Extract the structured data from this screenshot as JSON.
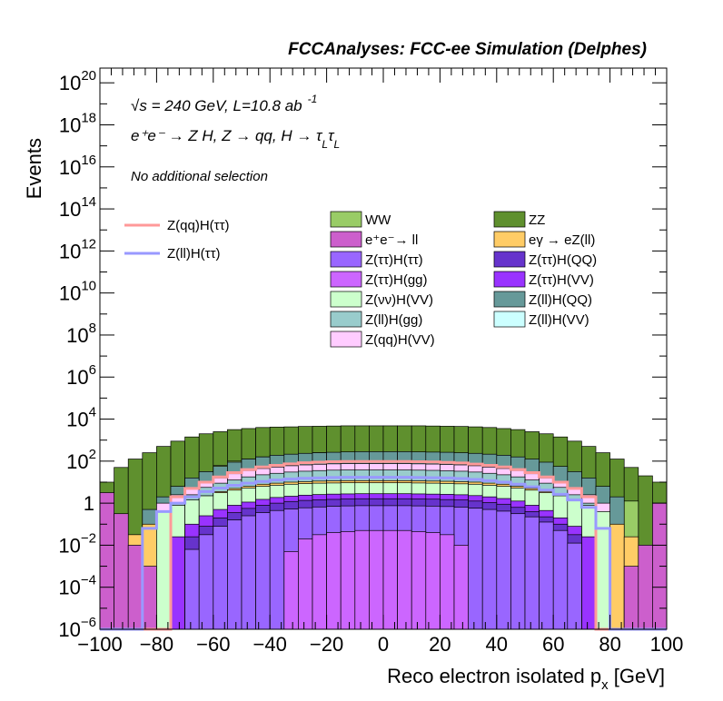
{
  "chart_data": {
    "type": "area",
    "title": "FCCAnalyses: FCC-ee Simulation (Delphes)",
    "xlabel": "Reco electron isolated p",
    "xlabel_sub": "x",
    "xlabel_unit": " [GeV]",
    "ylabel": "Events",
    "xlim": [
      -100,
      100
    ],
    "ylim_log10": [
      -6,
      20.7
    ],
    "log_y": true,
    "grid": false,
    "x_ticks": [
      "−100",
      "−80",
      "−60",
      "−40",
      "−20",
      "0",
      "20",
      "40",
      "60",
      "80",
      "100"
    ],
    "y_ticks": [
      {
        "base": "10",
        "exp": "−6"
      },
      {
        "base": "10",
        "exp": "−4"
      },
      {
        "base": "10",
        "exp": "−2"
      },
      {
        "base": "1",
        "exp": ""
      },
      {
        "base": "10",
        "exp": "2"
      },
      {
        "base": "10",
        "exp": "4"
      },
      {
        "base": "10",
        "exp": "6"
      },
      {
        "base": "10",
        "exp": "8"
      },
      {
        "base": "10",
        "exp": "10"
      },
      {
        "base": "10",
        "exp": "12"
      },
      {
        "base": "10",
        "exp": "14"
      },
      {
        "base": "10",
        "exp": "16"
      },
      {
        "base": "10",
        "exp": "18"
      },
      {
        "base": "10",
        "exp": "20"
      }
    ],
    "annotations": {
      "energy_prefix": "√",
      "energy_s": "s",
      "energy_text": " = 240 GeV, L=10.8 ab",
      "lumi_exp": "-1",
      "process": "e⁺e⁻ → Z H, Z → qq, H → τ",
      "tau_sub": "L",
      "tau2": "τ",
      "tau2_sub": "L",
      "selection": "No additional selection"
    },
    "legend_placement": "center-right",
    "signals": [
      {
        "name": "Z(qq)H(ττ)",
        "color": "#ff9999"
      },
      {
        "name": "Z(ll)H(ττ)",
        "color": "#9999ff"
      }
    ],
    "legend_backgrounds": [
      {
        "name": "WW",
        "color": "#99cc66"
      },
      {
        "name": "ZZ",
        "color": "#5f902e"
      },
      {
        "name": "e⁺e⁻→ ll",
        "color": "#cc5fcc"
      },
      {
        "name": "eγ → eZ(ll)",
        "color": "#ffcc66"
      },
      {
        "name": "Z(ττ)H(ττ)",
        "color": "#9966ff"
      },
      {
        "name": "Z(ττ)H(QQ)",
        "color": "#6633cc"
      },
      {
        "name": "Z(ττ)H(gg)",
        "color": "#cc66ff"
      },
      {
        "name": "Z(ττ)H(VV)",
        "color": "#9933ff"
      },
      {
        "name": "Z(νν)H(VV)",
        "color": "#ccffcc"
      },
      {
        "name": "Z(ll)H(QQ)",
        "color": "#669999"
      },
      {
        "name": "Z(ll)H(gg)",
        "color": "#99cccc"
      },
      {
        "name": "Z(ll)H(VV)",
        "color": "#ccffff"
      },
      {
        "name": "Z(qq)H(VV)",
        "color": "#ffccff"
      }
    ],
    "bin_edges_start": -100,
    "bin_width": 5,
    "stack_log10": [
      {
        "name": "ZZ",
        "color": "#5f902e",
        "values": [
          1.0,
          1.7,
          2.1,
          2.4,
          2.7,
          2.95,
          3.15,
          3.3,
          3.4,
          3.5,
          3.55,
          3.6,
          3.62,
          3.63,
          3.65,
          3.66,
          3.67,
          3.68,
          3.68,
          3.68,
          3.68,
          3.68,
          3.68,
          3.67,
          3.66,
          3.65,
          3.63,
          3.6,
          3.55,
          3.5,
          3.4,
          3.3,
          3.15,
          2.95,
          2.7,
          2.4,
          2.1,
          1.7,
          1.3,
          1.0
        ]
      },
      {
        "name": "WW",
        "color": "#99cc66",
        "values": [
          -6,
          -6,
          -6,
          -2.5,
          -0.5,
          0.5,
          1.0,
          1.5,
          1.8,
          2.0,
          2.1,
          2.2,
          2.25,
          2.3,
          2.35,
          2.4,
          2.4,
          2.4,
          2.4,
          2.4,
          2.4,
          2.4,
          2.4,
          2.4,
          2.4,
          2.35,
          2.3,
          2.25,
          2.2,
          2.1,
          2.0,
          1.8,
          1.5,
          1.0,
          0.4,
          0.2,
          -0.3,
          0.1,
          -6,
          -6
        ]
      },
      {
        "name": "Z(ll)H(QQ)",
        "color": "#669999",
        "values": [
          -6,
          -6,
          -6,
          -0.3,
          0.3,
          0.8,
          1.2,
          1.5,
          1.75,
          1.95,
          2.1,
          2.2,
          2.28,
          2.33,
          2.37,
          2.4,
          2.42,
          2.44,
          2.45,
          2.45,
          2.45,
          2.45,
          2.44,
          2.43,
          2.42,
          2.4,
          2.37,
          2.33,
          2.28,
          2.2,
          2.1,
          1.95,
          1.75,
          1.5,
          1.2,
          0.8,
          0.3,
          -6,
          -6,
          -6
        ]
      },
      {
        "name": "Z(qq)H(VV)",
        "color": "#ffccff",
        "values": [
          -6,
          -6,
          -6,
          -6,
          0.0,
          0.4,
          0.7,
          1.0,
          1.2,
          1.4,
          1.55,
          1.65,
          1.72,
          1.78,
          1.82,
          1.85,
          1.87,
          1.88,
          1.88,
          1.88,
          1.88,
          1.88,
          1.87,
          1.86,
          1.84,
          1.82,
          1.78,
          1.72,
          1.65,
          1.55,
          1.4,
          1.2,
          1.0,
          0.7,
          0.4,
          0.0,
          -6,
          -6,
          -6,
          -6
        ]
      },
      {
        "name": "Z(ll)H(gg)",
        "color": "#99cccc",
        "values": [
          -6,
          -6,
          -6,
          -6,
          -6,
          0.0,
          0.4,
          0.75,
          0.95,
          1.1,
          1.25,
          1.35,
          1.42,
          1.48,
          1.52,
          1.55,
          1.57,
          1.58,
          1.58,
          1.58,
          1.58,
          1.58,
          1.57,
          1.56,
          1.54,
          1.52,
          1.48,
          1.42,
          1.35,
          1.25,
          1.1,
          0.95,
          0.75,
          0.4,
          0.0,
          -6,
          -6,
          -6,
          -6,
          -6
        ]
      },
      {
        "name": "eγ → eZ(ll)",
        "color": "#ffcc66",
        "values": [
          -6,
          -6,
          -1.5,
          -1.0,
          -0.5,
          -0.2,
          0.1,
          0.35,
          0.55,
          0.7,
          0.8,
          0.9,
          0.95,
          1.0,
          1.02,
          1.05,
          1.06,
          1.07,
          1.07,
          1.07,
          1.07,
          1.07,
          1.06,
          1.05,
          1.04,
          1.02,
          1.0,
          0.95,
          0.9,
          0.8,
          0.7,
          0.55,
          0.35,
          0.1,
          -0.2,
          -0.5,
          -1.0,
          -1.6,
          -6,
          -6
        ]
      },
      {
        "name": "Z(νν)H(VV)",
        "color": "#ccffcc",
        "values": [
          -6,
          -6,
          -6,
          -6,
          -0.4,
          -0.1,
          0.15,
          0.35,
          0.5,
          0.62,
          0.72,
          0.8,
          0.85,
          0.9,
          0.93,
          0.95,
          0.96,
          0.97,
          0.97,
          0.97,
          0.97,
          0.97,
          0.96,
          0.95,
          0.94,
          0.92,
          0.9,
          0.85,
          0.8,
          0.72,
          0.62,
          0.5,
          0.35,
          0.15,
          -0.1,
          -0.4,
          -6,
          -6,
          -6,
          -6
        ]
      },
      {
        "name": "Z(ττ)H(VV)",
        "color": "#9933ff",
        "values": [
          -6,
          -6,
          -6,
          -6,
          -6,
          -1.6,
          -1.0,
          -0.6,
          -0.3,
          -0.1,
          0.05,
          0.18,
          0.27,
          0.33,
          0.38,
          0.41,
          0.43,
          0.44,
          0.45,
          0.45,
          0.45,
          0.45,
          0.44,
          0.43,
          0.42,
          0.4,
          0.36,
          0.3,
          0.22,
          0.1,
          -0.1,
          -0.35,
          -0.7,
          -1.1,
          -1.6,
          -6,
          -6,
          -6,
          -6,
          -6
        ]
      },
      {
        "name": "Z(ττ)H(QQ)",
        "color": "#6633cc",
        "values": [
          -6,
          -6,
          -6,
          -6,
          -6,
          -6,
          -1.6,
          -1.1,
          -0.7,
          -0.45,
          -0.25,
          -0.1,
          0.0,
          0.08,
          0.13,
          0.16,
          0.18,
          0.2,
          0.21,
          0.21,
          0.21,
          0.21,
          0.2,
          0.19,
          0.17,
          0.15,
          0.1,
          0.03,
          -0.05,
          -0.2,
          -0.4,
          -0.65,
          -1.0,
          -1.5,
          -6,
          -6,
          -6,
          -6,
          -6,
          -6
        ]
      },
      {
        "name": "Z(ττ)H(ττ)",
        "color": "#9966ff",
        "values": [
          -6,
          -6,
          -6,
          -6,
          -6,
          -6,
          -2.2,
          -1.5,
          -1.1,
          -0.8,
          -0.6,
          -0.45,
          -0.35,
          -0.28,
          -0.22,
          -0.18,
          -0.15,
          -0.13,
          -0.12,
          -0.12,
          -0.12,
          -0.12,
          -0.13,
          -0.14,
          -0.16,
          -0.19,
          -0.24,
          -0.3,
          -0.38,
          -0.5,
          -0.65,
          -0.9,
          -1.3,
          -1.9,
          -6,
          -6,
          -6,
          -6,
          -6,
          -6
        ]
      },
      {
        "name": "Z(ττ)H(gg)",
        "color": "#cc66ff",
        "values": [
          -6,
          -6,
          -6,
          -6,
          -6,
          -6,
          -6,
          -6,
          -6,
          -6,
          -6,
          -6,
          -6,
          -2.3,
          -1.7,
          -1.5,
          -1.4,
          -1.35,
          -1.3,
          -1.3,
          -1.3,
          -1.3,
          -1.35,
          -1.4,
          -1.5,
          -2.0,
          -6,
          -6,
          -6,
          -6,
          -6,
          -6,
          -6,
          -6,
          -6,
          -6,
          -6,
          -6,
          -6,
          -6
        ]
      },
      {
        "name": "e⁺e⁻→ ll",
        "color": "#cc5fcc",
        "values": [
          0.5,
          -0.5,
          -2.0,
          -3.0,
          -6,
          -6,
          -6,
          -6,
          -6,
          -6,
          -6,
          -6,
          -6,
          -6,
          -6,
          -6,
          -6,
          -6,
          -6,
          -6,
          -6,
          -6,
          -6,
          -6,
          -6,
          -6,
          -6,
          -6,
          -6,
          -6,
          -6,
          -6,
          -6,
          -6,
          -6,
          -6,
          -6,
          -3.0,
          -2.0,
          0.0
        ]
      }
    ],
    "signal_lines_log10": [
      {
        "name": "Z(qq)H(ττ)",
        "color": "#ff9999",
        "values": [
          -6,
          -6,
          -6,
          -6,
          -6,
          0.3,
          0.7,
          1.0,
          1.25,
          1.45,
          1.6,
          1.72,
          1.8,
          1.87,
          1.92,
          1.95,
          1.97,
          1.98,
          1.98,
          1.98,
          1.98,
          1.98,
          1.97,
          1.96,
          1.94,
          1.91,
          1.86,
          1.8,
          1.72,
          1.6,
          1.45,
          1.25,
          1.0,
          0.7,
          0.3,
          -6,
          -6,
          -6,
          -6,
          -6
        ]
      },
      {
        "name": "Z(ll)H(ττ)",
        "color": "#9999ff",
        "values": [
          -6,
          -6,
          -6,
          -1.2,
          -0.4,
          0.0,
          0.3,
          0.55,
          0.72,
          0.85,
          0.95,
          1.03,
          1.1,
          1.15,
          1.18,
          1.2,
          1.22,
          1.23,
          1.23,
          1.23,
          1.23,
          1.23,
          1.22,
          1.21,
          1.2,
          1.17,
          1.13,
          1.07,
          1.0,
          0.9,
          0.78,
          0.62,
          0.42,
          0.15,
          -0.2,
          -1.2,
          -6,
          -6,
          -6,
          -6
        ]
      }
    ]
  }
}
